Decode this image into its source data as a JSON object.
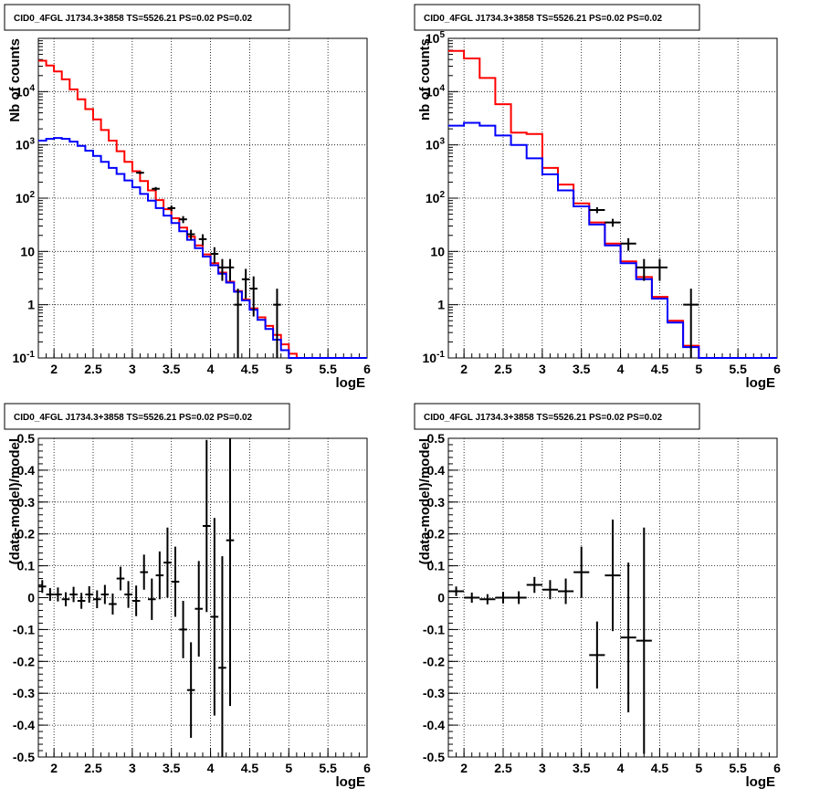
{
  "chart_data": [
    {
      "type": "line",
      "title": "CID0_4FGL J1734.3+3858 TS=5526.21 PS=0.02 PS=0.02",
      "xlabel": "logE",
      "ylabel": "Nb of counts",
      "xlim": [
        1.8,
        6.0
      ],
      "ylim": [
        0.1,
        100000
      ],
      "yscale": "log",
      "grid": true,
      "xticks": [
        "2",
        "2.5",
        "3",
        "3.5",
        "4",
        "4.5",
        "5",
        "5.5",
        "6"
      ],
      "yticks": [
        "10^-1",
        "1",
        "10",
        "10^2",
        "10^3",
        "10^4"
      ],
      "bin_width": 0.1,
      "series": [
        {
          "color": "#ff0000",
          "draw": "step",
          "x": [
            1.8,
            1.9,
            2.0,
            2.1,
            2.2,
            2.3,
            2.4,
            2.5,
            2.6,
            2.7,
            2.8,
            2.9,
            3.0,
            3.1,
            3.2,
            3.3,
            3.4,
            3.5,
            3.6,
            3.7,
            3.8,
            3.9,
            4.0,
            4.1,
            4.2,
            4.3,
            4.4,
            4.5,
            4.6,
            4.7,
            4.8,
            4.9,
            5.0,
            5.1,
            5.2,
            5.3,
            5.4,
            5.5,
            5.6,
            5.7,
            5.8,
            5.9
          ],
          "values": [
            38000,
            31000,
            24000,
            17000,
            11000,
            7200,
            4700,
            3000,
            1900,
            1200,
            760,
            480,
            320,
            210,
            140,
            92,
            62,
            42,
            28,
            19,
            13,
            8.8,
            6.0,
            4.0,
            2.7,
            1.8,
            1.25,
            0.85,
            0.58,
            0.4,
            0.27,
            0.18,
            0.12,
            0.1,
            0.1,
            0.1,
            0.1,
            0.1,
            0.1,
            0.1,
            0.1,
            0.1
          ]
        },
        {
          "color": "#0000ff",
          "draw": "step",
          "x": [
            1.8,
            1.9,
            2.0,
            2.1,
            2.2,
            2.3,
            2.4,
            2.5,
            2.6,
            2.7,
            2.8,
            2.9,
            3.0,
            3.1,
            3.2,
            3.3,
            3.4,
            3.5,
            3.6,
            3.7,
            3.8,
            3.9,
            4.0,
            4.1,
            4.2,
            4.3,
            4.4,
            4.5,
            4.6,
            4.7,
            4.8,
            4.9,
            5.0,
            5.1,
            5.2,
            5.3,
            5.4,
            5.5,
            5.6,
            5.7,
            5.8,
            5.9
          ],
          "values": [
            1200,
            1300,
            1350,
            1300,
            1150,
            960,
            780,
            620,
            480,
            370,
            285,
            215,
            160,
            120,
            90,
            65,
            47,
            34,
            24,
            16.5,
            11.5,
            8.0,
            5.5,
            3.8,
            2.6,
            1.75,
            1.2,
            0.8,
            0.52,
            0.35,
            0.22,
            0.14,
            0.1,
            0.1,
            0.1,
            0.1,
            0.1,
            0.1,
            0.1,
            0.1,
            0.1,
            0.1
          ]
        },
        {
          "color": "#000000",
          "draw": "points",
          "x": [
            3.1,
            3.3,
            3.5,
            3.65,
            3.75,
            3.9,
            4.05,
            4.15,
            4.25,
            4.35,
            4.45,
            4.55,
            4.85
          ],
          "values": [
            300,
            150,
            65,
            40,
            21,
            17,
            9,
            5,
            5,
            1,
            3,
            2,
            1
          ],
          "yerr": [
            17,
            12,
            8,
            6,
            4.5,
            4,
            3,
            2.2,
            2.2,
            1,
            1.7,
            1.4,
            1
          ]
        }
      ]
    },
    {
      "type": "line",
      "title": "CID0_4FGL J1734.3+3858 TS=5526.21 PS=0.02 PS=0.02",
      "xlabel": "logE",
      "ylabel": "nb of counts",
      "xlim": [
        1.8,
        6.0
      ],
      "ylim": [
        0.1,
        100000
      ],
      "yscale": "log",
      "grid": true,
      "xticks": [
        "2",
        "2.5",
        "3",
        "3.5",
        "4",
        "4.5",
        "5",
        "5.5",
        "6"
      ],
      "yticks": [
        "10^-1",
        "1",
        "10",
        "10^2",
        "10^3",
        "10^4",
        "10^5"
      ],
      "bin_width": 0.2,
      "series": [
        {
          "color": "#ff0000",
          "draw": "step",
          "x": [
            1.8,
            2.0,
            2.2,
            2.4,
            2.6,
            2.8,
            3.0,
            3.2,
            3.4,
            3.6,
            3.8,
            4.0,
            4.2,
            4.4,
            4.6,
            4.8,
            5.0,
            5.2,
            5.4,
            5.6,
            5.8
          ],
          "values": [
            58000,
            42000,
            18000,
            5800,
            1700,
            1600,
            370,
            180,
            80,
            35,
            14,
            6.5,
            3.3,
            1.4,
            0.5,
            0.17,
            0.1,
            0.1,
            0.1,
            0.1,
            0.1
          ]
        },
        {
          "color": "#0000ff",
          "draw": "step",
          "x": [
            1.8,
            2.0,
            2.2,
            2.4,
            2.6,
            2.8,
            3.0,
            3.2,
            3.4,
            3.6,
            3.8,
            4.0,
            4.2,
            4.4,
            4.6,
            4.8,
            5.0,
            5.2,
            5.4,
            5.6,
            5.8
          ],
          "values": [
            2300,
            2600,
            2300,
            1500,
            1000,
            560,
            280,
            140,
            70,
            32,
            13,
            6.0,
            3.0,
            1.3,
            0.46,
            0.16,
            0.1,
            0.1,
            0.1,
            0.1,
            0.1
          ]
        },
        {
          "color": "#000000",
          "draw": "points",
          "x": [
            3.7,
            3.9,
            4.1,
            4.3,
            4.5,
            4.9
          ],
          "values": [
            60,
            35,
            14,
            5,
            5,
            1
          ],
          "yerr": [
            7.7,
            5.9,
            3.7,
            2.2,
            2.2,
            1
          ]
        }
      ]
    },
    {
      "type": "scatter",
      "title": "CID0_4FGL J1734.3+3858 TS=5526.21 PS=0.02 PS=0.02",
      "xlabel": "logE",
      "ylabel": "(data-model)/model",
      "xlim": [
        1.8,
        6.0
      ],
      "ylim": [
        -0.5,
        0.5
      ],
      "grid": true,
      "xticks": [
        "2",
        "2.5",
        "3",
        "3.5",
        "4",
        "4.5",
        "5",
        "5.5",
        "6"
      ],
      "yticks": [
        "-0.5",
        "-0.4",
        "-0.3",
        "-0.2",
        "-0.1",
        "0",
        "0.1",
        "0.2",
        "0.3",
        "0.4",
        "0.5"
      ],
      "bin_width": 0.1,
      "series": [
        {
          "color": "#000000",
          "x": [
            1.85,
            1.95,
            2.05,
            2.15,
            2.25,
            2.35,
            2.45,
            2.55,
            2.65,
            2.75,
            2.85,
            2.95,
            3.05,
            3.15,
            3.25,
            3.35,
            3.45,
            3.55,
            3.65,
            3.75,
            3.85,
            3.95,
            4.05,
            4.15,
            4.25
          ],
          "values": [
            0.035,
            0.01,
            0.01,
            -0.005,
            0.01,
            -0.01,
            0.01,
            -0.005,
            0.01,
            -0.02,
            0.06,
            0.01,
            -0.01,
            0.08,
            -0.005,
            0.07,
            0.11,
            0.05,
            -0.1,
            -0.29,
            -0.035,
            0.225,
            -0.06,
            -0.22,
            0.18
          ],
          "yerr": [
            0.02,
            0.02,
            0.022,
            0.022,
            0.024,
            0.025,
            0.026,
            0.028,
            0.03,
            0.033,
            0.037,
            0.042,
            0.048,
            0.055,
            0.065,
            0.075,
            0.11,
            0.11,
            0.09,
            0.15,
            0.15,
            0.27,
            0.31,
            0.35,
            0.52
          ]
        }
      ]
    },
    {
      "type": "scatter",
      "title": "CID0_4FGL J1734.3+3858 TS=5526.21 PS=0.02 PS=0.02",
      "xlabel": "logE",
      "ylabel": "(data-model)/model",
      "xlim": [
        1.8,
        6.0
      ],
      "ylim": [
        -0.5,
        0.5
      ],
      "grid": true,
      "xticks": [
        "2",
        "2.5",
        "3",
        "3.5",
        "4",
        "4.5",
        "5",
        "5.5",
        "6"
      ],
      "yticks": [
        "-0.5",
        "-0.4",
        "-0.3",
        "-0.2",
        "-0.1",
        "0",
        "0.1",
        "0.2",
        "0.3",
        "0.4",
        "0.5"
      ],
      "bin_width": 0.2,
      "series": [
        {
          "color": "#000000",
          "x": [
            1.9,
            2.1,
            2.3,
            2.5,
            2.7,
            2.9,
            3.1,
            3.3,
            3.5,
            3.7,
            3.9,
            4.1,
            4.3
          ],
          "values": [
            0.02,
            0.0,
            -0.005,
            0.0,
            0.0,
            0.04,
            0.025,
            0.02,
            0.08,
            -0.18,
            0.07,
            -0.125,
            -0.135
          ],
          "yerr": [
            0.015,
            0.016,
            0.016,
            0.018,
            0.02,
            0.025,
            0.03,
            0.04,
            0.08,
            0.105,
            0.175,
            0.235,
            0.355
          ]
        }
      ]
    }
  ]
}
